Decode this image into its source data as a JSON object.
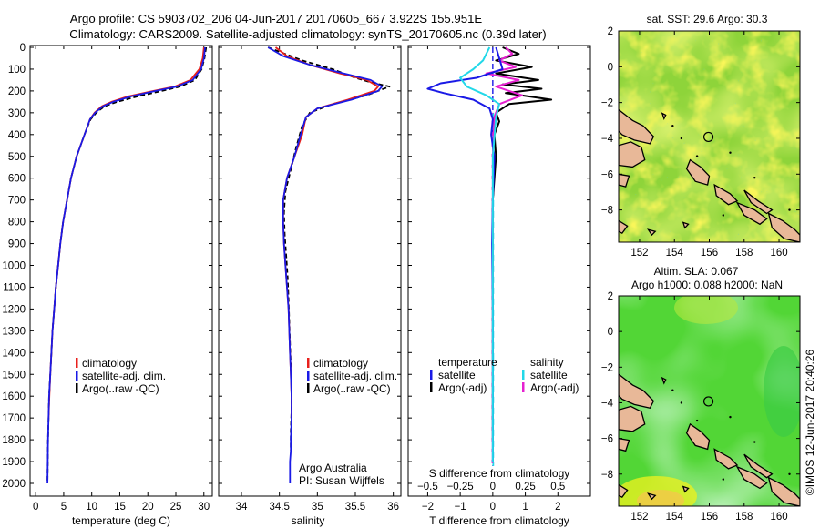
{
  "header": {
    "line1": "Argo profile: CS 5903702_206 04-Jun-2017 20170605_667 3.922S 155.951E",
    "line2": "Climatology: CARS2009. Satellite-adjusted climatology: synTS_20170605.nc (0.39d later)"
  },
  "credit": {
    "org": "Argo Australia",
    "pi": "PI: Susan Wijffels",
    "stamp": "©IMOS 12-Jun-2017 20:40:26"
  },
  "colors": {
    "climatology": "#e8201c",
    "satellite": "#1a1ae6",
    "argo": "#000000",
    "sal_sat": "#22d8e8",
    "sal_argo": "#e620d0",
    "coast_fill": "#e8b898",
    "ocean_bg": "#7fd040"
  },
  "chart_data": [
    {
      "name": "temperature-profile",
      "type": "line",
      "xlabel": "temperature (deg C)",
      "ylabel": "",
      "xlim": [
        -1,
        31.5
      ],
      "ylim": [
        2000,
        0
      ],
      "xticks": [
        0,
        5,
        10,
        15,
        20,
        25,
        30
      ],
      "yticks": [
        0,
        100,
        200,
        300,
        400,
        500,
        600,
        700,
        800,
        900,
        1000,
        1100,
        1200,
        1300,
        1400,
        1500,
        1600,
        1700,
        1800,
        1900,
        2000
      ],
      "legend": [
        "climatology",
        "satellite-adj. clim.",
        "Argo(..raw -QC)"
      ],
      "legend_position": "bottom-right",
      "series": [
        {
          "name": "climatology",
          "color": "#e8201c",
          "x": [
            30.0,
            29.8,
            29.2,
            27.6,
            24.8,
            21.0,
            16.5,
            13.5,
            11.8,
            10.5,
            9.7,
            9.0,
            7.3,
            6.3,
            5.6,
            4.9,
            4.4,
            4.0,
            3.6,
            3.3,
            3.0,
            2.8,
            2.6,
            2.45,
            2.3
          ],
          "y": [
            0,
            50,
            100,
            150,
            180,
            200,
            225,
            250,
            270,
            300,
            330,
            380,
            500,
            600,
            700,
            800,
            900,
            1000,
            1100,
            1200,
            1300,
            1400,
            1500,
            1600,
            1700
          ]
        },
        {
          "name": "satellite-adj. clim.",
          "color": "#1a1ae6",
          "x": [
            30.2,
            30.0,
            29.5,
            28.0,
            25.2,
            21.4,
            17.0,
            13.8,
            12.0,
            10.6,
            9.7,
            9.0,
            7.3,
            6.3,
            5.6,
            4.9,
            4.4,
            4.0,
            3.6,
            3.3,
            3.0,
            2.8,
            2.6,
            2.4,
            2.3,
            2.2,
            2.15,
            2.1
          ],
          "y": [
            0,
            50,
            100,
            150,
            180,
            200,
            225,
            250,
            270,
            300,
            330,
            380,
            500,
            600,
            700,
            800,
            900,
            1000,
            1100,
            1200,
            1300,
            1400,
            1500,
            1600,
            1700,
            1800,
            1900,
            2000
          ]
        },
        {
          "name": "Argo(..raw -QC)",
          "color": "#000000",
          "x": [
            30.4,
            30.1,
            29.6,
            28.4,
            25.8,
            22.5,
            18.2,
            14.5,
            12.3,
            10.8,
            9.8,
            9.0,
            7.3,
            6.3,
            5.6,
            4.9,
            4.4,
            4.0,
            3.6,
            3.3,
            3.0,
            2.8,
            2.6,
            2.4,
            2.3,
            2.2,
            2.15,
            2.1
          ],
          "y": [
            0,
            50,
            100,
            150,
            180,
            200,
            225,
            250,
            270,
            300,
            330,
            380,
            500,
            600,
            700,
            800,
            900,
            1000,
            1100,
            1200,
            1300,
            1400,
            1500,
            1600,
            1700,
            1800,
            1900,
            1990
          ]
        }
      ]
    },
    {
      "name": "salinity-profile",
      "type": "line",
      "xlabel": "salinity",
      "ylabel": "",
      "xlim": [
        33.7,
        36.1
      ],
      "ylim": [
        2000,
        0
      ],
      "xticks": [
        34,
        34.5,
        35,
        35.5,
        36
      ],
      "xtick_labels": [
        "34",
        "34.5",
        "35",
        "35.5",
        "36"
      ],
      "legend": [
        "climatology",
        "satellite-adj. clim.",
        "Argo(..raw -QC)"
      ],
      "legend_position": "bottom-right",
      "series": [
        {
          "name": "climatology",
          "color": "#e8201c",
          "x": [
            34.45,
            34.6,
            34.9,
            35.3,
            35.65,
            35.8,
            35.75,
            35.4,
            35.0,
            34.85,
            34.8,
            34.7,
            34.6,
            34.55,
            34.55,
            34.56,
            34.58,
            34.6,
            34.62,
            34.63,
            34.64,
            34.65,
            34.66,
            34.66
          ],
          "y": [
            0,
            40,
            80,
            120,
            150,
            180,
            200,
            240,
            280,
            320,
            400,
            500,
            600,
            700,
            800,
            900,
            1000,
            1100,
            1200,
            1300,
            1400,
            1500,
            1600,
            1700
          ]
        },
        {
          "name": "satellite-adj. clim.",
          "color": "#1a1ae6",
          "x": [
            34.35,
            34.55,
            34.9,
            35.35,
            35.7,
            35.85,
            35.8,
            35.45,
            35.0,
            34.85,
            34.78,
            34.7,
            34.6,
            34.55,
            34.55,
            34.56,
            34.58,
            34.6,
            34.62,
            34.63,
            34.64,
            34.65,
            34.66,
            34.66,
            34.65,
            34.65,
            34.64,
            34.64
          ],
          "y": [
            0,
            40,
            80,
            120,
            150,
            180,
            200,
            240,
            280,
            320,
            400,
            500,
            600,
            700,
            800,
            900,
            1000,
            1100,
            1200,
            1300,
            1400,
            1500,
            1600,
            1700,
            1800,
            1850,
            1900,
            2000
          ]
        },
        {
          "name": "Argo(..raw -QC)",
          "color": "#000000",
          "x": [
            34.35,
            34.5,
            34.8,
            35.2,
            35.5,
            35.7,
            35.95,
            35.65,
            35.2,
            34.9,
            34.8,
            34.72,
            34.65,
            34.58,
            34.56,
            34.57,
            34.59,
            34.61,
            34.62,
            34.63,
            34.64,
            34.65,
            34.66,
            34.66,
            34.65,
            34.65
          ],
          "y": [
            0,
            20,
            60,
            100,
            140,
            160,
            180,
            220,
            260,
            300,
            360,
            460,
            560,
            660,
            760,
            860,
            960,
            1060,
            1160,
            1260,
            1360,
            1460,
            1560,
            1660,
            1760,
            1850
          ]
        }
      ]
    },
    {
      "name": "difference-profile",
      "type": "line",
      "xlabel": "T difference from climatology",
      "xlabel_top": "S difference from climatology",
      "xlim": [
        -2.6,
        3.0
      ],
      "ylim": [
        2000,
        0
      ],
      "xticks": [
        -2,
        -1,
        0,
        1,
        2
      ],
      "xtick_labels": [
        "−2",
        "−1",
        "0",
        "1",
        "2"
      ],
      "s_ticks": [
        -2,
        -1,
        0,
        1,
        2
      ],
      "s_tick_labels": [
        "−0.5",
        "−0.25",
        "0",
        "0.25",
        "0.5"
      ],
      "legend_titles": [
        "temperature",
        "salinity"
      ],
      "legend": [
        "satellite",
        "Argo(-adj)",
        "satellite",
        "Argo(-adj)"
      ],
      "legend_position": "bottom",
      "series": [
        {
          "name": "T satellite",
          "color": "#1a1ae6",
          "x": [
            0.1,
            0.2,
            0.3,
            -0.5,
            -1.6,
            -2.0,
            -1.5,
            -0.6,
            -0.1,
            0.0,
            -0.05,
            0.05,
            0.0,
            -0.02,
            0.0,
            0.0,
            0.0,
            0.0
          ],
          "y": [
            0,
            50,
            100,
            140,
            165,
            190,
            210,
            240,
            280,
            330,
            400,
            500,
            700,
            900,
            1200,
            1500,
            1800,
            1900
          ]
        },
        {
          "name": "T Argo(-adj)",
          "color": "#000000",
          "x": [
            0.3,
            0.8,
            0.1,
            1.2,
            0.1,
            1.4,
            0.3,
            1.5,
            0.4,
            1.8,
            0.5,
            0.1,
            0.2,
            0.05,
            0.1,
            0.0,
            0.0,
            0.0,
            0.0,
            0.0
          ],
          "y": [
            0,
            30,
            60,
            90,
            120,
            150,
            170,
            190,
            210,
            240,
            260,
            300,
            340,
            400,
            500,
            700,
            900,
            1200,
            1500,
            1800
          ]
        },
        {
          "name": "S satellite",
          "color": "#22d8e8",
          "x": [
            -0.1,
            -0.3,
            -0.6,
            -1.0,
            -0.8,
            -0.2,
            0.2,
            0.1,
            0.0,
            0.0,
            0.0,
            0.0
          ],
          "y": [
            0,
            60,
            100,
            140,
            180,
            220,
            260,
            320,
            500,
            800,
            1200,
            1900
          ]
        },
        {
          "name": "S Argo(-adj)",
          "color": "#e620d0",
          "x": [
            0.4,
            0.6,
            0.2,
            0.7,
            -0.2,
            0.8,
            0.1,
            0.9,
            0.2,
            0.05,
            0.0,
            0.0,
            0.0
          ],
          "y": [
            0,
            30,
            60,
            90,
            120,
            150,
            180,
            220,
            260,
            320,
            500,
            900,
            1900
          ]
        }
      ]
    },
    {
      "name": "sst-map",
      "type": "heatmap",
      "title": "sat. SST: 29.6 Argo: 30.3",
      "xlim": [
        150.8,
        161.2
      ],
      "ylim": [
        -9.8,
        2.0
      ],
      "xticks": [
        152,
        154,
        156,
        158,
        160
      ],
      "yticks": [
        2,
        0,
        -2,
        -4,
        -6,
        -8
      ],
      "yticks_labels": [
        "2",
        "0",
        "−2",
        "−4",
        "−6",
        "−8"
      ],
      "marker": {
        "lon": 155.951,
        "lat": -3.922
      }
    },
    {
      "name": "sla-map",
      "type": "heatmap",
      "title_line1": "Altim. SLA: 0.067",
      "title_line2": "Argo h1000: 0.088 h2000: NaN",
      "xlim": [
        150.8,
        161.2
      ],
      "ylim": [
        -9.8,
        2.0
      ],
      "xticks": [
        152,
        154,
        156,
        158,
        160
      ],
      "yticks": [
        2,
        0,
        -2,
        -4,
        -6,
        -8
      ],
      "yticks_labels": [
        "2",
        "0",
        "−2",
        "−4",
        "−6",
        "−8"
      ],
      "marker": {
        "lon": 155.951,
        "lat": -3.922
      }
    }
  ]
}
